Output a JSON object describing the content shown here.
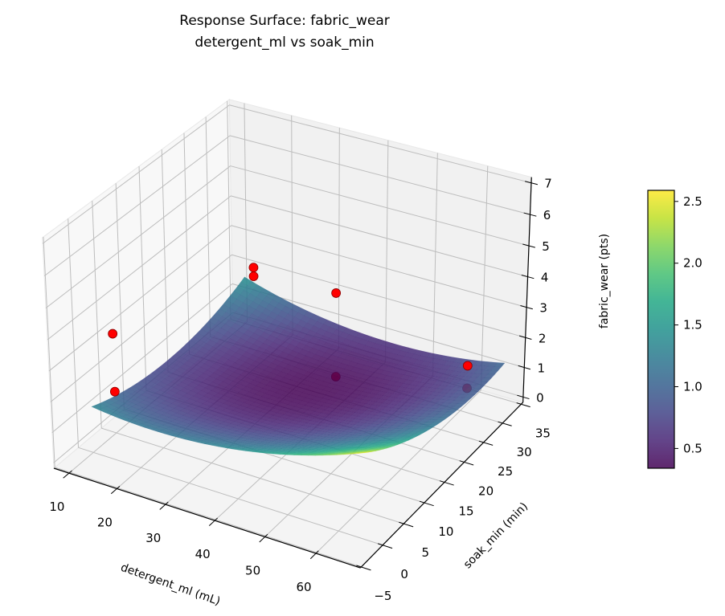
{
  "chart_data": {
    "type": "surface",
    "title": "Response Surface: fabric_wear",
    "subtitle": "detergent_ml vs soak_min",
    "xlabel": "detergent_ml (mL)",
    "ylabel": "soak_min (min)",
    "zlabel": "fabric_wear (pts)",
    "view": {
      "elev": 30,
      "azim": -60
    },
    "xlim": [
      6.8,
      68.6
    ],
    "ylim": [
      -5.2,
      35.5
    ],
    "zlim": [
      -0.18,
      7.18
    ],
    "xticks": [
      10,
      20,
      30,
      40,
      50,
      60
    ],
    "xtick_labels": [
      "10",
      "20",
      "30",
      "40",
      "50",
      "60"
    ],
    "yticks": [
      -5,
      0,
      5,
      10,
      15,
      20,
      25,
      30,
      35
    ],
    "ytick_labels": [
      "−5",
      "0",
      "5",
      "10",
      "15",
      "20",
      "25",
      "30",
      "35"
    ],
    "zticks": [
      0,
      1,
      2,
      3,
      4,
      5,
      6,
      7
    ],
    "ztick_labels": [
      "0",
      "1",
      "2",
      "3",
      "4",
      "5",
      "6",
      "7"
    ],
    "grid": true,
    "surface": {
      "colormap": "viridis",
      "alpha": 0.85,
      "x": [
        10,
        21,
        32,
        43,
        54,
        65
      ],
      "y": [
        0,
        7,
        14,
        21,
        28,
        35
      ],
      "z": [
        [
          1.34,
          1.2,
          1.26,
          1.51,
          1.95,
          2.59
        ],
        [
          0.97,
          0.77,
          0.77,
          0.95,
          1.33,
          1.89
        ],
        [
          0.8,
          0.54,
          0.46,
          0.58,
          0.89,
          1.39
        ],
        [
          0.82,
          0.49,
          0.35,
          0.4,
          0.65,
          1.08
        ],
        [
          1.03,
          0.64,
          0.43,
          0.42,
          0.59,
          0.96
        ],
        [
          1.44,
          0.97,
          0.7,
          0.62,
          0.73,
          1.04
        ]
      ]
    },
    "scatter": {
      "color": "#ff0000",
      "edgecolor": "#8b0000",
      "points": [
        {
          "x": 12,
          "y": 35,
          "z": 1.85
        },
        {
          "x": 12,
          "y": 35,
          "z": 1.55
        },
        {
          "x": 10,
          "y": 5,
          "z": 3.1
        },
        {
          "x": 10,
          "y": 5,
          "z": 1.2
        },
        {
          "x": 37,
          "y": 26.5,
          "z": 3.1
        },
        {
          "x": 37,
          "y": 26.5,
          "z": 0.3
        },
        {
          "x": 62,
          "y": 29,
          "z": 1.55
        },
        {
          "x": 62,
          "y": 29,
          "z": 0.8
        }
      ]
    },
    "colorbar": {
      "colormap": "viridis",
      "range": [
        0.34,
        2.59
      ],
      "ticks": [
        0.5,
        1.0,
        1.5,
        2.0,
        2.5
      ],
      "tick_labels": [
        "0.5",
        "1.0",
        "1.5",
        "2.0",
        "2.5"
      ]
    },
    "colors": {
      "pane_floor": "#f4f4f4",
      "pane_left": "#f8f8f8",
      "pane_back": "#f1f1f1",
      "grid": "#bdbdbd",
      "axis": "#000000"
    }
  }
}
